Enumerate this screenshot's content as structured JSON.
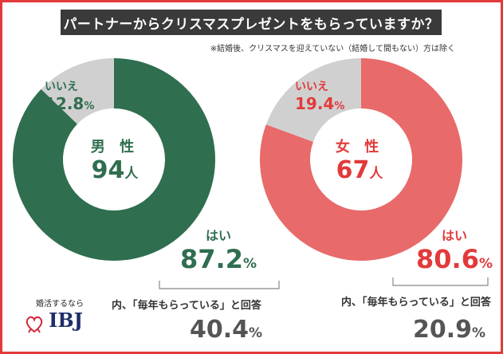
{
  "title": "パートナーからクリスマスプレゼントをもらっていますか？",
  "note": "※結婚後、クリスマスを迎えていない（結婚して間もない）方は除く",
  "chart_data": [
    {
      "type": "pie",
      "subtitle": "男性",
      "sample": "94",
      "sample_unit": "人",
      "slices": [
        {
          "label": "はい",
          "value": 87.2,
          "color": "#2f6e4f"
        },
        {
          "label": "いいえ",
          "value": 12.8,
          "color": "#d0d0d0"
        }
      ],
      "sub_note": "内、「毎年もらっている」と回答",
      "sub_value": 40.4,
      "accent": "#2f6e4f"
    },
    {
      "type": "pie",
      "subtitle": "女性",
      "sample": "67",
      "sample_unit": "人",
      "slices": [
        {
          "label": "はい",
          "value": 80.6,
          "color": "#e86a6a"
        },
        {
          "label": "いいえ",
          "value": 19.4,
          "color": "#d0d0d0"
        }
      ],
      "sub_note": "内、「毎年もらっている」と回答",
      "sub_value": 20.9,
      "accent": "#e23a3a"
    }
  ],
  "display": {
    "male": {
      "gender": "男 性",
      "count": "94",
      "unit": "人",
      "no_label": "いいえ",
      "no_pct": "12.8",
      "yes_label": "はい",
      "yes_pct": "87.2",
      "sub_note": "内、「毎年もらっている」と回答",
      "sub_pct": "40.4"
    },
    "female": {
      "gender": "女 性",
      "count": "67",
      "unit": "人",
      "no_label": "いいえ",
      "no_pct": "19.4",
      "yes_label": "はい",
      "yes_pct": "80.6",
      "sub_note": "内、「毎年もらっている」と回答",
      "sub_pct": "20.9"
    },
    "percent_sign": "%"
  },
  "logo": {
    "tagline": "婚活するなら",
    "brand": "IBJ",
    "icon": "heart-ribbon-icon"
  }
}
